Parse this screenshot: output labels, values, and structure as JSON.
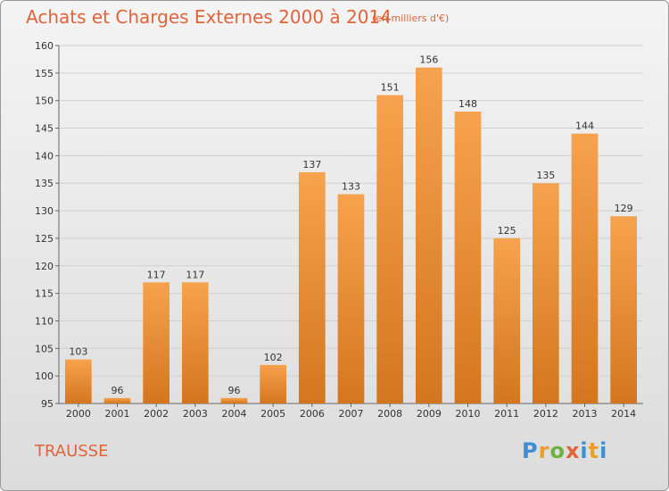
{
  "header": {
    "title": "Achats et Charges Externes 2000 à 2014",
    "subtitle": "(en milliers d'€)"
  },
  "footer": {
    "commune": "TRAUSSE",
    "logo_text": "Proxiti"
  },
  "colors": {
    "title": "#e0643a",
    "bar_light": "#f7a24e",
    "bar_dark": "#d4761f",
    "grid": "#cfcfcf"
  },
  "chart_data": {
    "type": "bar",
    "title": "Achats et Charges Externes 2000 à 2014",
    "subtitle": "(en milliers d'€)",
    "categories": [
      "2000",
      "2001",
      "2002",
      "2003",
      "2004",
      "2005",
      "2006",
      "2007",
      "2008",
      "2009",
      "2010",
      "2011",
      "2012",
      "2013",
      "2014"
    ],
    "values": [
      103,
      96,
      117,
      117,
      96,
      102,
      137,
      133,
      151,
      156,
      148,
      125,
      135,
      144,
      129
    ],
    "ylim": [
      95,
      160
    ],
    "yticks": [
      95,
      100,
      105,
      110,
      115,
      120,
      125,
      130,
      135,
      140,
      145,
      150,
      155,
      160
    ],
    "grid": true,
    "legend": "none"
  }
}
